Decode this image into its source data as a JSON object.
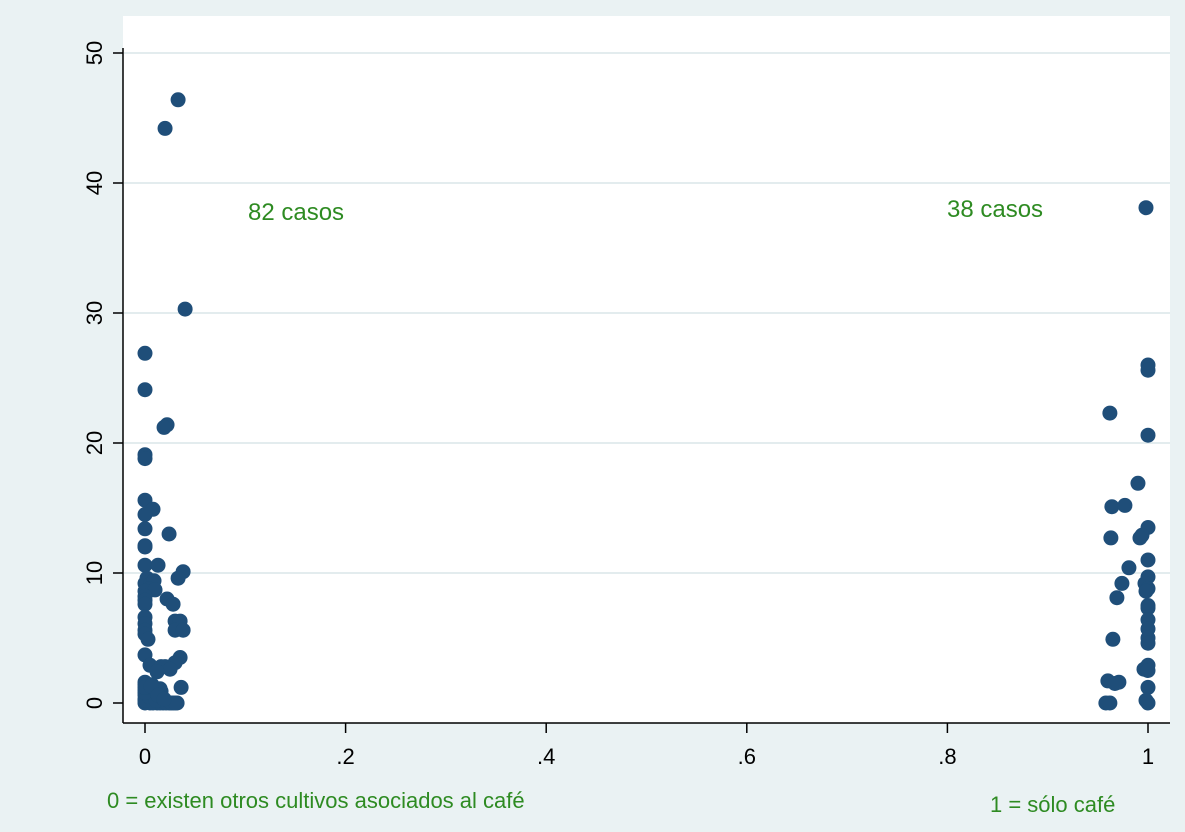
{
  "chart_data": {
    "type": "scatter",
    "title": "",
    "xlabel": "",
    "ylabel": "",
    "xlim": [
      -0.02,
      1.02
    ],
    "ylim": [
      -1,
      51
    ],
    "x_ticks": [
      0,
      0.2,
      0.4,
      0.6,
      0.8,
      1
    ],
    "x_tick_labels": [
      "0",
      ".2",
      ".4",
      ".6",
      ".8",
      "1"
    ],
    "y_ticks": [
      0,
      10,
      20,
      30,
      40,
      50
    ],
    "y_tick_labels": [
      "0",
      "10",
      "20",
      "30",
      "40",
      "50"
    ],
    "grid": "horizontal",
    "annotations": [
      {
        "text": "82 casos",
        "x": 0.1,
        "y": 38
      },
      {
        "text": "38 casos",
        "x": 0.92,
        "y": 38
      }
    ],
    "notes": {
      "left": "0 = existen otros cultivos asociados al café",
      "right": "1 = sólo café"
    },
    "colors": {
      "marker": "#1f4e79",
      "annotation": "#2e8b22",
      "background": "#eaf2f3",
      "plot_bg": "#ffffff",
      "grid": "#e3ecee"
    },
    "series": [
      {
        "values": [
          [
            0.033,
            46.4
          ],
          [
            0.02,
            44.2
          ],
          [
            0.04,
            30.3
          ],
          [
            0.0,
            26.9
          ],
          [
            0.0,
            24.1
          ],
          [
            0.022,
            21.4
          ],
          [
            0.019,
            21.2
          ],
          [
            0.0,
            19.1
          ],
          [
            0.0,
            18.8
          ],
          [
            0.0,
            15.6
          ],
          [
            0.008,
            14.9
          ],
          [
            0.0,
            14.5
          ],
          [
            0.0,
            13.4
          ],
          [
            0.024,
            13.0
          ],
          [
            0.0,
            12.1
          ],
          [
            0.0,
            12.0
          ],
          [
            0.0,
            10.6
          ],
          [
            0.013,
            10.6
          ],
          [
            0.038,
            10.1
          ],
          [
            0.033,
            9.6
          ],
          [
            0.002,
            9.6
          ],
          [
            0.0,
            9.2
          ],
          [
            0.006,
            9.2
          ],
          [
            0.009,
            9.4
          ],
          [
            0.005,
            8.8
          ],
          [
            0.0,
            8.6
          ],
          [
            0.01,
            8.7
          ],
          [
            0.0,
            8.2
          ],
          [
            0.022,
            8.0
          ],
          [
            0.0,
            7.9
          ],
          [
            0.028,
            7.6
          ],
          [
            0.0,
            7.6
          ],
          [
            0.0,
            6.6
          ],
          [
            0.03,
            6.3
          ],
          [
            0.035,
            6.3
          ],
          [
            0.0,
            6.1
          ],
          [
            0.03,
            5.6
          ],
          [
            0.0,
            5.6
          ],
          [
            0.038,
            5.6
          ],
          [
            0.0,
            5.3
          ],
          [
            0.003,
            4.9
          ],
          [
            0.0,
            3.7
          ],
          [
            0.035,
            3.5
          ],
          [
            0.03,
            3.1
          ],
          [
            0.005,
            2.9
          ],
          [
            0.016,
            2.8
          ],
          [
            0.02,
            2.8
          ],
          [
            0.025,
            2.6
          ],
          [
            0.012,
            2.4
          ],
          [
            0.0,
            1.6
          ],
          [
            0.0,
            1.4
          ],
          [
            0.007,
            1.4
          ],
          [
            0.036,
            1.2
          ],
          [
            0.015,
            1.1
          ],
          [
            0.0,
            1.0
          ],
          [
            0.016,
            0.9
          ],
          [
            0.009,
            0.8
          ],
          [
            0.0,
            0.6
          ],
          [
            0.0,
            0.3
          ],
          [
            0.003,
            0.1
          ],
          [
            0.0,
            0.0
          ],
          [
            0.005,
            0.0
          ],
          [
            0.012,
            0.0
          ],
          [
            0.018,
            0.0
          ],
          [
            0.024,
            0.0
          ],
          [
            0.028,
            0.0
          ],
          [
            0.032,
            0.0
          ],
          [
            0.008,
            0.0
          ],
          [
            0.015,
            0.0
          ],
          [
            0.021,
            0.0
          ],
          [
            0.026,
            0.0
          ],
          [
            0.03,
            0.0
          ],
          [
            0.0,
            0.2
          ],
          [
            0.004,
            0.5
          ],
          [
            0.011,
            0.2
          ],
          [
            0.017,
            0.4
          ],
          [
            0.0,
            0.8
          ],
          [
            0.01,
            1.0
          ],
          [
            0.0,
            1.2
          ],
          [
            0.006,
            1.3
          ],
          [
            0.013,
            0.6
          ],
          [
            0.019,
            0.3
          ]
        ]
      },
      {
        "values": [
          [
            0.998,
            38.1
          ],
          [
            1.0,
            26.0
          ],
          [
            1.0,
            25.6
          ],
          [
            0.962,
            22.3
          ],
          [
            1.0,
            20.6
          ],
          [
            0.99,
            16.9
          ],
          [
            0.964,
            15.1
          ],
          [
            0.977,
            15.2
          ],
          [
            1.0,
            13.5
          ],
          [
            0.994,
            12.9
          ],
          [
            0.963,
            12.7
          ],
          [
            0.992,
            12.7
          ],
          [
            1.0,
            11.0
          ],
          [
            0.981,
            10.4
          ],
          [
            1.0,
            9.7
          ],
          [
            0.997,
            9.2
          ],
          [
            0.974,
            9.2
          ],
          [
            1.0,
            8.8
          ],
          [
            0.998,
            8.6
          ],
          [
            0.969,
            8.1
          ],
          [
            1.0,
            7.5
          ],
          [
            1.0,
            7.3
          ],
          [
            1.0,
            6.4
          ],
          [
            1.0,
            5.7
          ],
          [
            1.0,
            5.0
          ],
          [
            0.965,
            4.9
          ],
          [
            1.0,
            4.6
          ],
          [
            1.0,
            2.9
          ],
          [
            0.996,
            2.6
          ],
          [
            1.0,
            2.5
          ],
          [
            0.96,
            1.7
          ],
          [
            0.971,
            1.6
          ],
          [
            0.967,
            1.5
          ],
          [
            1.0,
            1.2
          ],
          [
            0.958,
            0.0
          ],
          [
            0.962,
            0.0
          ],
          [
            1.0,
            0.0
          ],
          [
            0.998,
            0.2
          ]
        ]
      }
    ]
  }
}
